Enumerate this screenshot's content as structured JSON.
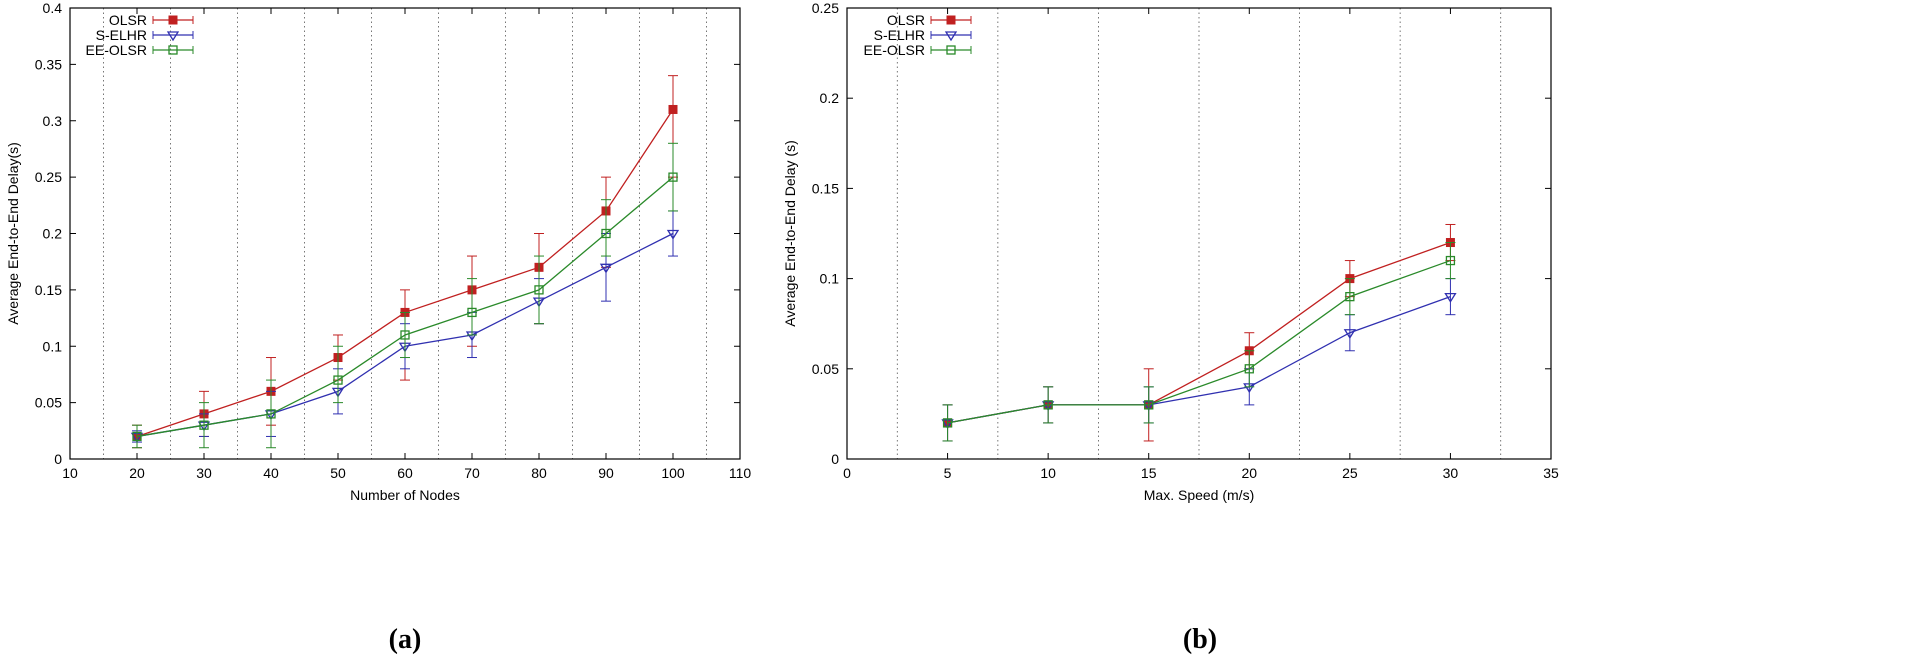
{
  "chart_data": [
    {
      "type": "line",
      "panel_label": "(a)",
      "title": "",
      "xlabel": "Number of Nodes",
      "ylabel": "Average End-to-End Delay(s)",
      "xlim": [
        10,
        110
      ],
      "ylim": [
        0,
        0.4
      ],
      "x_ticks": [
        10,
        20,
        30,
        40,
        50,
        60,
        70,
        80,
        90,
        100,
        110
      ],
      "x_tick_labels": [
        "10",
        "20",
        "30",
        "40",
        "50",
        "60",
        "70",
        "80",
        "90",
        "100",
        "110"
      ],
      "y_ticks": [
        0,
        0.05,
        0.1,
        0.15,
        0.2,
        0.25,
        0.3,
        0.35,
        0.4
      ],
      "y_tick_labels": [
        "0",
        "0.05",
        "0.1",
        "0.15",
        "0.2",
        "0.25",
        "0.3",
        "0.35",
        "0.4"
      ],
      "grid_x": [
        15,
        25,
        35,
        45,
        55,
        65,
        75,
        85,
        95,
        105
      ],
      "legend_position": "top-left",
      "x": [
        20,
        30,
        40,
        50,
        60,
        70,
        80,
        90,
        100
      ],
      "series": [
        {
          "name": "OLSR",
          "color": "#c02020",
          "marker": "filled-square",
          "values": [
            0.02,
            0.04,
            0.06,
            0.09,
            0.13,
            0.15,
            0.17,
            0.22,
            0.31
          ],
          "err_low": [
            0.01,
            0.02,
            0.03,
            0.07,
            0.07,
            0.1,
            0.12,
            0.17,
            0.25
          ],
          "err_high": [
            0.03,
            0.06,
            0.09,
            0.11,
            0.15,
            0.18,
            0.2,
            0.25,
            0.34
          ]
        },
        {
          "name": "S-ELHR",
          "color": "#3030b0",
          "marker": "down-triangle",
          "values": [
            0.02,
            0.03,
            0.04,
            0.06,
            0.1,
            0.11,
            0.14,
            0.17,
            0.2
          ],
          "err_low": [
            0.015,
            0.02,
            0.02,
            0.04,
            0.08,
            0.09,
            0.12,
            0.14,
            0.18
          ],
          "err_high": [
            0.025,
            0.04,
            0.06,
            0.08,
            0.12,
            0.13,
            0.16,
            0.2,
            0.22
          ]
        },
        {
          "name": "EE-OLSR",
          "color": "#2a8a2a",
          "marker": "open-square",
          "values": [
            0.02,
            0.03,
            0.04,
            0.07,
            0.11,
            0.13,
            0.15,
            0.2,
            0.25
          ],
          "err_low": [
            0.01,
            0.01,
            0.01,
            0.05,
            0.09,
            0.11,
            0.12,
            0.18,
            0.22
          ],
          "err_high": [
            0.03,
            0.05,
            0.07,
            0.1,
            0.13,
            0.16,
            0.18,
            0.23,
            0.28
          ]
        }
      ]
    },
    {
      "type": "line",
      "panel_label": "(b)",
      "title": "",
      "xlabel": "Max. Speed (m/s)",
      "ylabel": "Average End-to-End Delay (s)",
      "xlim": [
        0,
        35
      ],
      "ylim": [
        0,
        0.25
      ],
      "x_ticks": [
        0,
        5,
        10,
        15,
        20,
        25,
        30,
        35
      ],
      "x_tick_labels": [
        "0",
        "5",
        "10",
        "15",
        "20",
        "25",
        "30",
        "35"
      ],
      "y_ticks": [
        0,
        0.05,
        0.1,
        0.15,
        0.2,
        0.25
      ],
      "y_tick_labels": [
        "0",
        "0.05",
        "0.1",
        "0.15",
        "0.2",
        "0.25"
      ],
      "grid_x": [
        2.5,
        7.5,
        12.5,
        17.5,
        22.5,
        27.5,
        32.5
      ],
      "legend_position": "top-left",
      "x": [
        5,
        10,
        15,
        20,
        25,
        30
      ],
      "series": [
        {
          "name": "OLSR",
          "color": "#c02020",
          "marker": "filled-square",
          "values": [
            0.02,
            0.03,
            0.03,
            0.06,
            0.1,
            0.12
          ],
          "err_low": [
            0.01,
            0.02,
            0.01,
            0.05,
            0.09,
            0.11
          ],
          "err_high": [
            0.03,
            0.04,
            0.05,
            0.07,
            0.11,
            0.13
          ]
        },
        {
          "name": "S-ELHR",
          "color": "#3030b0",
          "marker": "down-triangle",
          "values": [
            0.02,
            0.03,
            0.03,
            0.04,
            0.07,
            0.09
          ],
          "err_low": [
            0.01,
            0.02,
            0.02,
            0.03,
            0.06,
            0.08
          ],
          "err_high": [
            0.03,
            0.04,
            0.04,
            0.05,
            0.08,
            0.1
          ]
        },
        {
          "name": "EE-OLSR",
          "color": "#2a8a2a",
          "marker": "open-square",
          "values": [
            0.02,
            0.03,
            0.03,
            0.05,
            0.09,
            0.11
          ],
          "err_low": [
            0.01,
            0.02,
            0.02,
            0.04,
            0.08,
            0.1
          ],
          "err_high": [
            0.03,
            0.04,
            0.04,
            0.06,
            0.1,
            0.12
          ]
        }
      ]
    }
  ]
}
